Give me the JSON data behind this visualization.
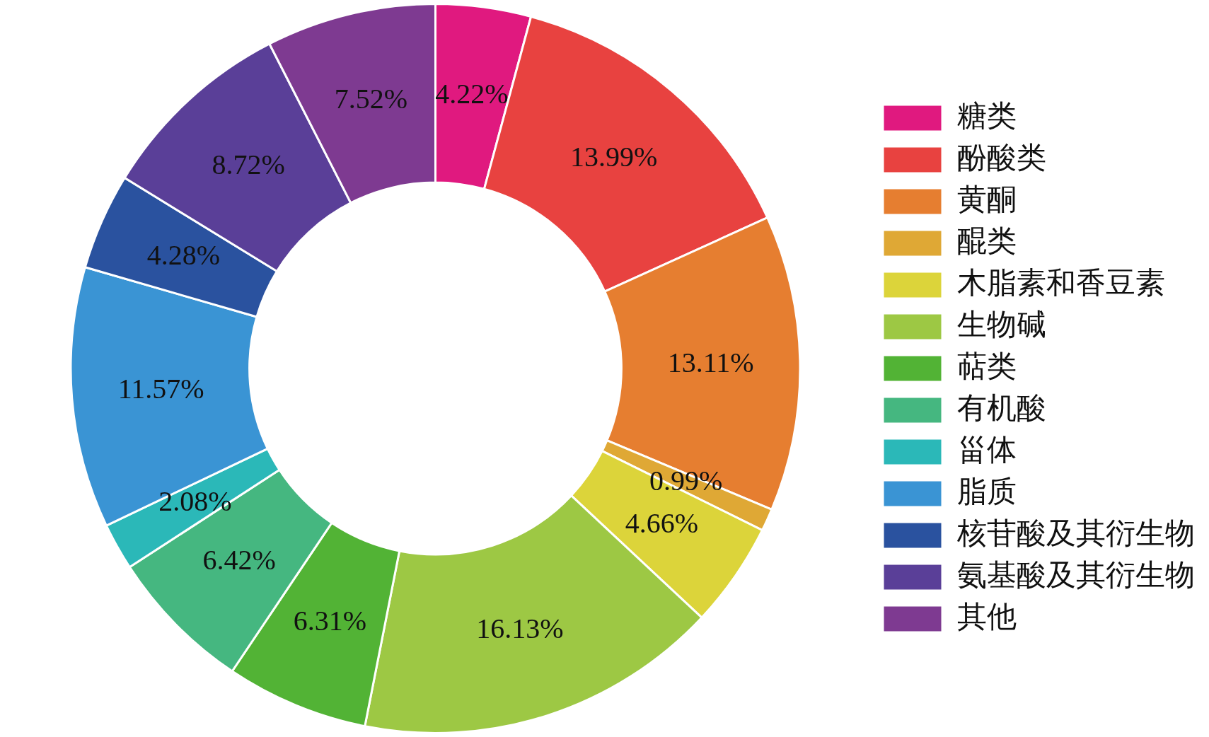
{
  "chart_data": {
    "type": "donut",
    "categories": [
      "糖类",
      "酚酸类",
      "黄酮",
      "醌类",
      "木脂素和香豆素",
      "生物碱",
      "萜类",
      "有机酸",
      "甾体",
      "脂质",
      "核苷酸及其衍生物",
      "氨基酸及其衍生物",
      "其他"
    ],
    "values": [
      4.22,
      13.99,
      13.11,
      0.99,
      4.66,
      16.13,
      6.31,
      6.42,
      2.08,
      11.57,
      4.28,
      8.72,
      7.52
    ],
    "value_labels": [
      "4.22%",
      "13.99%",
      "13.11%",
      "0.99%",
      "4.66%",
      "16.13%",
      "6.31%",
      "6.42%",
      "2.08%",
      "11.57%",
      "4.28%",
      "8.72%",
      "7.52%"
    ],
    "colors": [
      "#e0197f",
      "#e84240",
      "#e67e30",
      "#dfa835",
      "#dcd43a",
      "#9dc844",
      "#52b335",
      "#45b780",
      "#2bb8b8",
      "#3a94d4",
      "#2a529f",
      "#5a3f98",
      "#7e3a91"
    ],
    "legend": "right"
  }
}
